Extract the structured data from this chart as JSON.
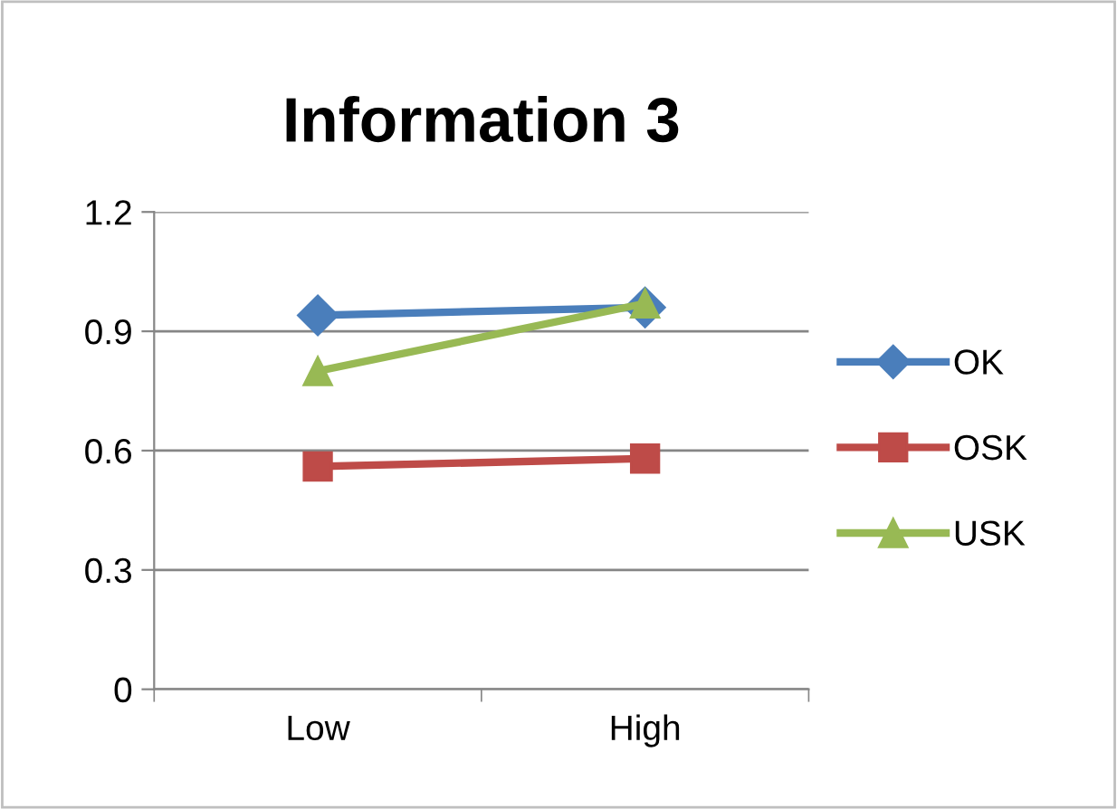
{
  "chart_data": {
    "type": "line",
    "title": "Information 3",
    "categories": [
      "Low",
      "High"
    ],
    "series": [
      {
        "name": "OK",
        "color": "#4a7ebb",
        "values": [
          0.94,
          0.96
        ],
        "marker": "diamond"
      },
      {
        "name": "OSK",
        "color": "#be4b48",
        "values": [
          0.56,
          0.58
        ],
        "marker": "square"
      },
      {
        "name": "USK",
        "color": "#98b954",
        "values": [
          0.8,
          0.97
        ],
        "marker": "triangle"
      }
    ],
    "ylim": [
      0,
      1.2
    ],
    "yticks": [
      0,
      0.3,
      0.6,
      0.9,
      1.2
    ],
    "grid": "y",
    "legend": "right",
    "line_style": "solid"
  }
}
